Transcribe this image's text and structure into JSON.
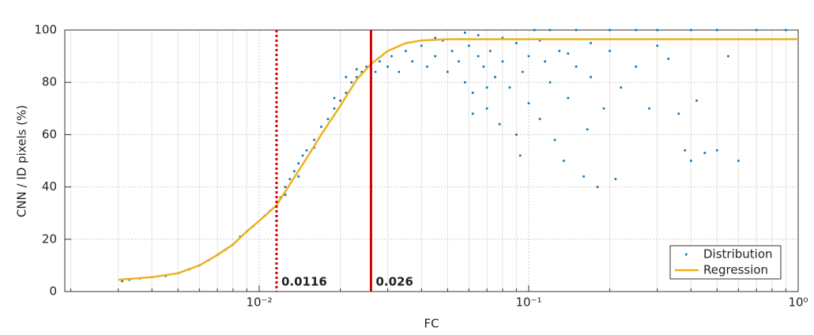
{
  "chart_data": {
    "type": "scatter",
    "xlabel": "FC",
    "ylabel": "CNN / ID pixels (%)",
    "xscale": "log",
    "xlim": [
      0.0019,
      1
    ],
    "ylim": [
      0,
      100
    ],
    "xticks": [
      {
        "value": 0.01,
        "label": "10⁻²"
      },
      {
        "value": 0.1,
        "label": "10⁻¹"
      },
      {
        "value": 1,
        "label": "10⁰"
      }
    ],
    "xminorticks": [
      0.002,
      0.003,
      0.004,
      0.005,
      0.006,
      0.007,
      0.008,
      0.009,
      0.02,
      0.03,
      0.04,
      0.05,
      0.06,
      0.07,
      0.08,
      0.09,
      0.2,
      0.3,
      0.4,
      0.5,
      0.6,
      0.7,
      0.8,
      0.9
    ],
    "yticks": [
      0,
      20,
      40,
      60,
      80,
      100
    ],
    "grid": true,
    "legend": "lower right",
    "series": [
      {
        "name": "Distribution",
        "type": "scatter",
        "color": "#0072bd",
        "x": [
          0.0031,
          0.0033,
          0.0036,
          0.004,
          0.0045,
          0.005,
          0.0055,
          0.006,
          0.0065,
          0.007,
          0.0075,
          0.008,
          0.0085,
          0.009,
          0.0095,
          0.0105,
          0.011,
          0.012,
          0.0125,
          0.013,
          0.0135,
          0.014,
          0.0145,
          0.015,
          0.016,
          0.017,
          0.018,
          0.019,
          0.02,
          0.021,
          0.022,
          0.023,
          0.024,
          0.025,
          0.0125,
          0.014,
          0.016,
          0.019,
          0.021,
          0.023,
          0.027,
          0.028,
          0.03,
          0.031,
          0.033,
          0.035,
          0.037,
          0.04,
          0.042,
          0.045,
          0.048,
          0.05,
          0.052,
          0.055,
          0.058,
          0.06,
          0.062,
          0.065,
          0.068,
          0.07,
          0.072,
          0.075,
          0.078,
          0.08,
          0.085,
          0.09,
          0.093,
          0.095,
          0.1,
          0.1,
          0.105,
          0.11,
          0.115,
          0.12,
          0.125,
          0.13,
          0.135,
          0.14,
          0.15,
          0.16,
          0.165,
          0.17,
          0.18,
          0.19,
          0.2,
          0.21,
          0.22,
          0.25,
          0.28,
          0.3,
          0.33,
          0.36,
          0.38,
          0.4,
          0.42,
          0.45,
          0.5,
          0.55,
          0.6,
          0.15,
          0.2,
          0.3,
          0.4,
          0.5,
          0.7,
          0.9,
          0.12,
          0.25,
          0.065,
          0.08,
          0.045,
          0.058,
          0.07,
          0.09,
          0.11,
          0.14,
          0.17,
          0.062
        ],
        "values": [
          4,
          4.5,
          5,
          5.5,
          6,
          7,
          8.5,
          10,
          12,
          14,
          16,
          18,
          21,
          23,
          25,
          29,
          31,
          36,
          40,
          43,
          46,
          49,
          52,
          54,
          58,
          63,
          66,
          70,
          73,
          76,
          80,
          82,
          84,
          86,
          37,
          44,
          55,
          74,
          82,
          85,
          84,
          88,
          86,
          90,
          84,
          92,
          88,
          94,
          86,
          90,
          96,
          84,
          92,
          88,
          80,
          94,
          76,
          90,
          86,
          70,
          92,
          82,
          64,
          88,
          78,
          95,
          52,
          84,
          72,
          90,
          100,
          66,
          88,
          80,
          58,
          92,
          50,
          74,
          86,
          44,
          62,
          82,
          40,
          70,
          92,
          43,
          78,
          86,
          70,
          94,
          89,
          68,
          54,
          50,
          73,
          53,
          54,
          90,
          50,
          100,
          100,
          100,
          100,
          100,
          100,
          100,
          100,
          100,
          98,
          97,
          97,
          99,
          78,
          60,
          96,
          91,
          95,
          68
        ]
      },
      {
        "name": "Regression",
        "type": "line",
        "color": "#edb120",
        "x": [
          0.003,
          0.004,
          0.005,
          0.006,
          0.007,
          0.008,
          0.009,
          0.01,
          0.0116,
          0.013,
          0.015,
          0.017,
          0.02,
          0.023,
          0.026,
          0.03,
          0.035,
          0.04,
          0.05,
          0.1,
          0.2,
          0.5,
          1
        ],
        "values": [
          4.5,
          5.5,
          7,
          10,
          14,
          18,
          23,
          27,
          33,
          41,
          51,
          60,
          71,
          81,
          87,
          92,
          95,
          96,
          96.5,
          96.5,
          96.5,
          96.5,
          96.5
        ]
      }
    ],
    "vlines": [
      {
        "x": 0.0116,
        "color": "#d40000",
        "style": "dotted"
      },
      {
        "x": 0.026,
        "color": "#d40000",
        "style": "solid"
      }
    ]
  }
}
